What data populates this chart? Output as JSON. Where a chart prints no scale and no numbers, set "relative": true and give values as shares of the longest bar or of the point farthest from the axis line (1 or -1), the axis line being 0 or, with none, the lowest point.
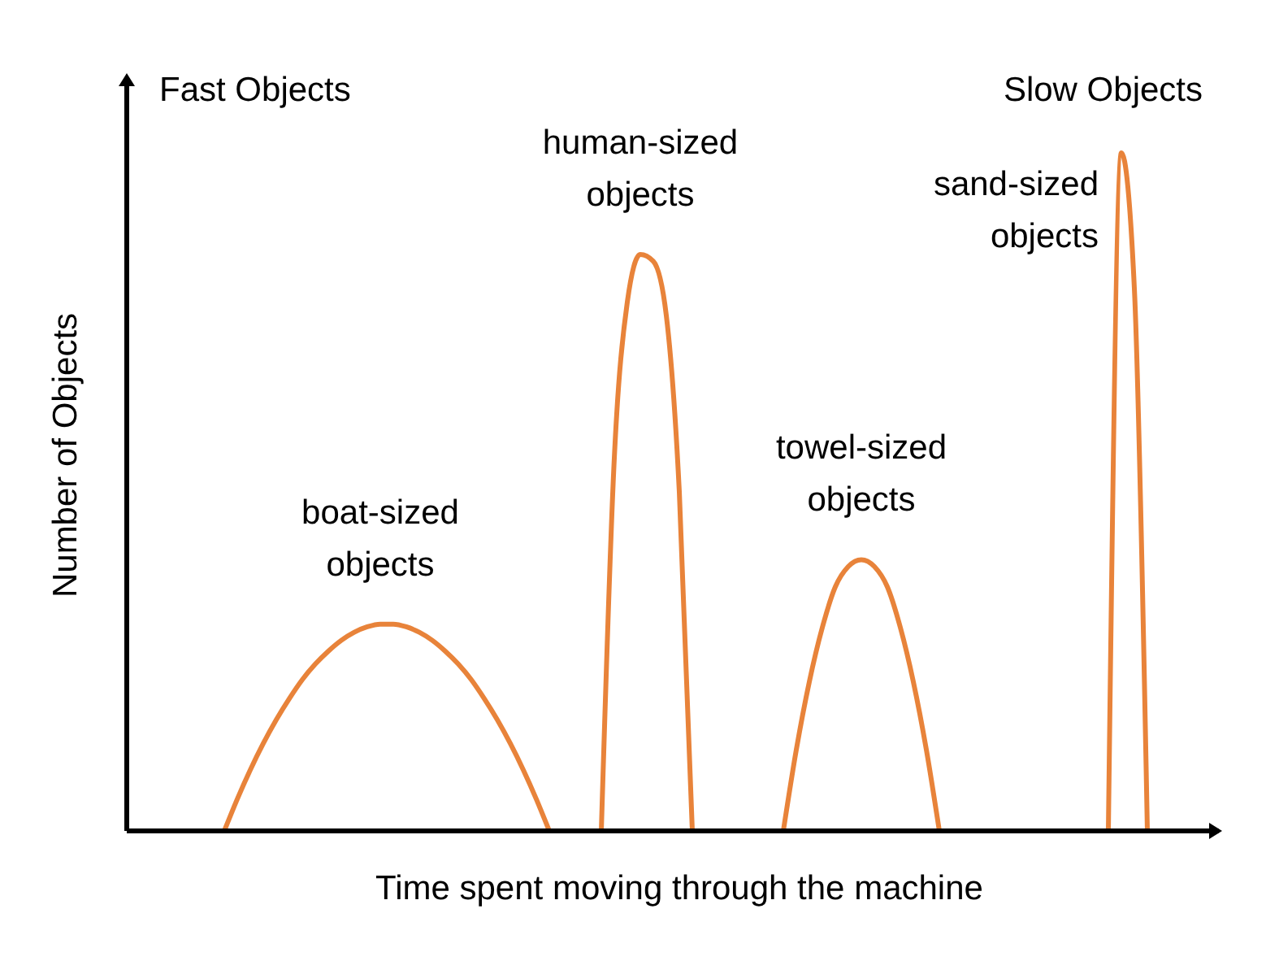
{
  "chart_data": {
    "type": "line",
    "relative": true,
    "xlabel": "Time spent moving through the machine",
    "ylabel": "Number of Objects",
    "marker": "none",
    "line_style": "solid",
    "categories": [
      null,
      null,
      null,
      null,
      null,
      null,
      null,
      null,
      null,
      null,
      null,
      null,
      null,
      null,
      null,
      null,
      null,
      null,
      null,
      null,
      null,
      null,
      null,
      null,
      null,
      null,
      null,
      null,
      null,
      null,
      null,
      null,
      null,
      null,
      null,
      null,
      null,
      null,
      null,
      null,
      null,
      null,
      null,
      null,
      null,
      null,
      null,
      null,
      null,
      null,
      null,
      null,
      null,
      null,
      null,
      null,
      null,
      null,
      null,
      null,
      null,
      null,
      null,
      null,
      null,
      null,
      null,
      null,
      null,
      null,
      null,
      null,
      null,
      null,
      null,
      null,
      null,
      null,
      null,
      null,
      null,
      null,
      null,
      null
    ],
    "series": [
      {
        "color": "#e8833a",
        "values": [
          null,
          null,
          null,
          null,
          null,
          null,
          null,
          0,
          0.047,
          0.09,
          0.129,
          0.164,
          0.195,
          0.223,
          0.246,
          0.265,
          0.281,
          0.293,
          0.301,
          0.305,
          0.305,
          0.301,
          0.293,
          0.281,
          0.265,
          0.246,
          0.223,
          0.195,
          0.164,
          0.129,
          0.09,
          0.047,
          0,
          null,
          null,
          null,
          null,
          null,
          null,
          null,
          null,
          null,
          null,
          null,
          null,
          null,
          null,
          null,
          null,
          null,
          null,
          null,
          null,
          null,
          null,
          null,
          null,
          null,
          null,
          null,
          null,
          null,
          null,
          null,
          null,
          null,
          null,
          null,
          null,
          null,
          null,
          null,
          null,
          null,
          null,
          null,
          null,
          null,
          null,
          null,
          null,
          null,
          null,
          null
        ]
      },
      {
        "color": "#e8833a",
        "values": [
          null,
          null,
          null,
          null,
          null,
          null,
          null,
          null,
          null,
          null,
          null,
          null,
          null,
          null,
          null,
          null,
          null,
          null,
          null,
          null,
          null,
          null,
          null,
          null,
          null,
          null,
          null,
          null,
          null,
          null,
          null,
          null,
          null,
          null,
          null,
          null,
          0,
          0.55,
          0.78,
          0.85,
          0.84,
          0.76,
          0.5,
          0,
          null,
          null,
          null,
          null,
          null,
          null,
          null,
          null,
          null,
          null,
          null,
          null,
          null,
          null,
          null,
          null,
          null,
          null,
          null,
          null,
          null,
          null,
          null,
          null,
          null,
          null,
          null,
          null,
          null,
          null,
          null,
          null,
          null,
          null,
          null,
          null,
          null,
          null,
          null,
          null
        ]
      },
      {
        "color": "#e8833a",
        "values": [
          null,
          null,
          null,
          null,
          null,
          null,
          null,
          null,
          null,
          null,
          null,
          null,
          null,
          null,
          null,
          null,
          null,
          null,
          null,
          null,
          null,
          null,
          null,
          null,
          null,
          null,
          null,
          null,
          null,
          null,
          null,
          null,
          null,
          null,
          null,
          null,
          null,
          null,
          null,
          null,
          null,
          null,
          null,
          null,
          null,
          null,
          null,
          null,
          null,
          null,
          0,
          0.12,
          0.22,
          0.3,
          0.36,
          0.39,
          0.4,
          0.39,
          0.36,
          0.3,
          0.22,
          0.12,
          0,
          null,
          null,
          null,
          null,
          null,
          null,
          null,
          null,
          null,
          null,
          null,
          null,
          null,
          null,
          null,
          null,
          null,
          null,
          null,
          null,
          null
        ]
      },
      {
        "color": "#e8833a",
        "values": [
          null,
          null,
          null,
          null,
          null,
          null,
          null,
          null,
          null,
          null,
          null,
          null,
          null,
          null,
          null,
          null,
          null,
          null,
          null,
          null,
          null,
          null,
          null,
          null,
          null,
          null,
          null,
          null,
          null,
          null,
          null,
          null,
          null,
          null,
          null,
          null,
          null,
          null,
          null,
          null,
          null,
          null,
          null,
          null,
          null,
          null,
          null,
          null,
          null,
          null,
          null,
          null,
          null,
          null,
          null,
          null,
          null,
          null,
          null,
          null,
          null,
          null,
          null,
          null,
          null,
          null,
          null,
          null,
          null,
          null,
          null,
          null,
          null,
          null,
          null,
          0,
          1,
          0.8,
          0,
          null,
          null,
          null,
          null,
          null
        ]
      }
    ],
    "annotations": [
      "Fast Objects",
      "Slow Objects",
      "boat-sized objects",
      "human-sized objects",
      "towel-sized objects",
      "sand-sized objects"
    ]
  }
}
